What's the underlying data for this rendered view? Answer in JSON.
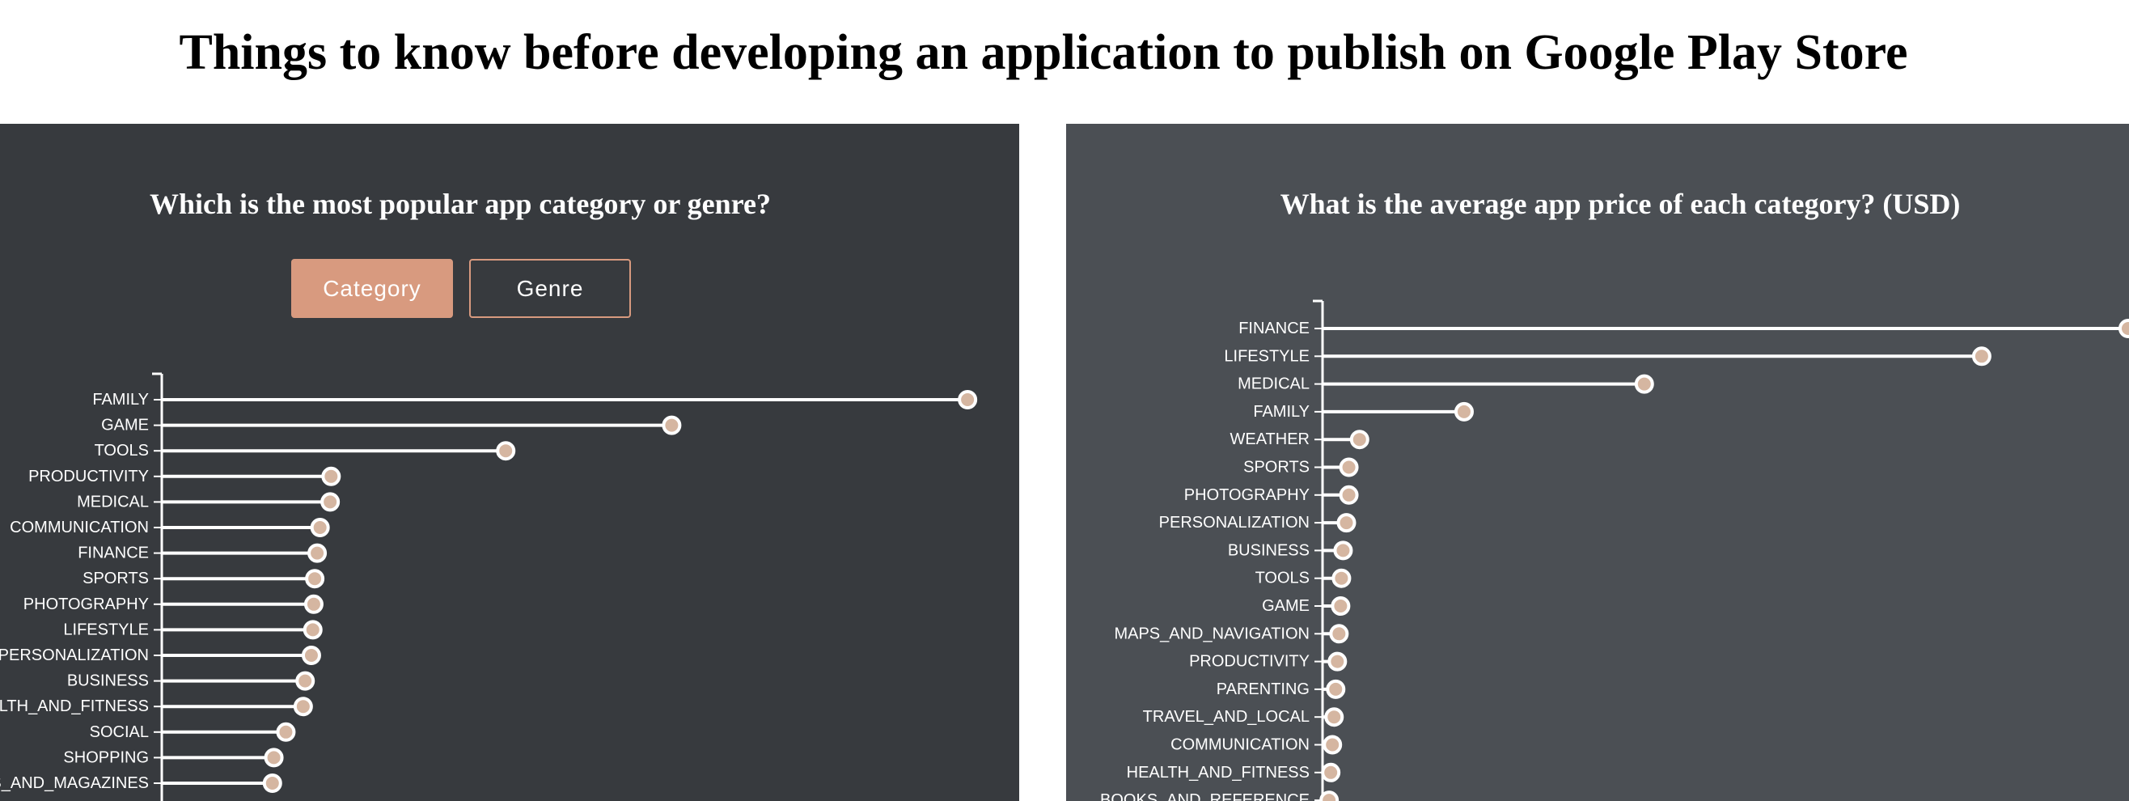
{
  "page": {
    "title": "Things to know before developing an application to publish on Google Play Store"
  },
  "left_panel": {
    "title": "Which is the most popular app category or genre?",
    "buttons": {
      "category_label": "Category",
      "genre_label": "Genre",
      "active": "Category"
    }
  },
  "right_panel": {
    "title": "What is the average app price of each category? (USD)"
  },
  "colors": {
    "stem": "#ffffff",
    "dot_fill": "#d5b6a1",
    "dot_stroke": "#ffffff",
    "accent": "#d89a7f"
  },
  "chart_data": [
    {
      "type": "lollipop",
      "title": "Which is the most popular app category or genre?",
      "orientation": "horizontal",
      "xlim": [
        0,
        1700
      ],
      "categories": [
        "FAMILY",
        "GAME",
        "TOOLS",
        "PRODUCTIVITY",
        "MEDICAL",
        "COMMUNICATION",
        "FINANCE",
        "SPORTS",
        "PHOTOGRAPHY",
        "LIFESTYLE",
        "PERSONALIZATION",
        "BUSINESS",
        "HEALTH_AND_FITNESS",
        "SOCIAL",
        "SHOPPING",
        "NEWS_AND_MAGAZINES"
      ],
      "values": [
        1675,
        1060,
        715,
        352,
        350,
        329,
        323,
        318,
        316,
        314,
        311,
        298,
        294,
        258,
        233,
        230
      ]
    },
    {
      "type": "lollipop",
      "title": "What is the average app price of each category? (USD)",
      "orientation": "horizontal",
      "xlim": [
        0,
        9.8
      ],
      "categories": [
        "FINANCE",
        "LIFESTYLE",
        "MEDICAL",
        "FAMILY",
        "WEATHER",
        "SPORTS",
        "PHOTOGRAPHY",
        "PERSONALIZATION",
        "BUSINESS",
        "TOOLS",
        "GAME",
        "MAPS_AND_NAVIGATION",
        "PRODUCTIVITY",
        "PARENTING",
        "TRAVEL_AND_LOCAL",
        "COMMUNICATION",
        "HEALTH_AND_FITNESS",
        "BOOKS_AND_REFERENCE"
      ],
      "values": [
        9.79,
        8.01,
        3.91,
        1.72,
        0.45,
        0.32,
        0.32,
        0.29,
        0.25,
        0.23,
        0.22,
        0.2,
        0.18,
        0.16,
        0.14,
        0.12,
        0.1,
        0.08
      ]
    }
  ]
}
